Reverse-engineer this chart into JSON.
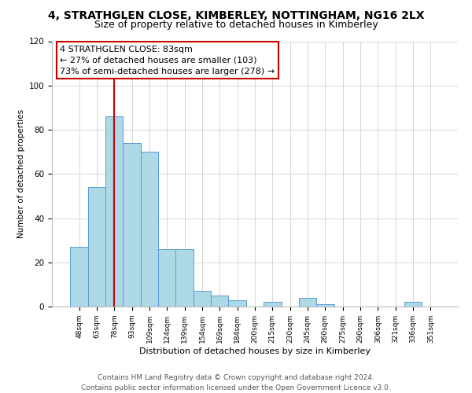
{
  "title": "4, STRATHGLEN CLOSE, KIMBERLEY, NOTTINGHAM, NG16 2LX",
  "subtitle": "Size of property relative to detached houses in Kimberley",
  "xlabel": "Distribution of detached houses by size in Kimberley",
  "ylabel": "Number of detached properties",
  "bar_labels": [
    "48sqm",
    "63sqm",
    "78sqm",
    "93sqm",
    "109sqm",
    "124sqm",
    "139sqm",
    "154sqm",
    "169sqm",
    "184sqm",
    "200sqm",
    "215sqm",
    "230sqm",
    "245sqm",
    "260sqm",
    "275sqm",
    "290sqm",
    "306sqm",
    "321sqm",
    "336sqm",
    "351sqm"
  ],
  "bar_values": [
    27,
    54,
    86,
    74,
    70,
    26,
    26,
    7,
    5,
    3,
    0,
    2,
    0,
    4,
    1,
    0,
    0,
    0,
    0,
    2,
    0
  ],
  "bar_color": "#add8e6",
  "bar_edge_color": "#5b9bd5",
  "vline_x": 2,
  "vline_color": "#cc0000",
  "ylim": [
    0,
    120
  ],
  "yticks": [
    0,
    20,
    40,
    60,
    80,
    100,
    120
  ],
  "annotation_title": "4 STRATHGLEN CLOSE: 83sqm",
  "annotation_line1": "← 27% of detached houses are smaller (103)",
  "annotation_line2": "73% of semi-detached houses are larger (278) →",
  "annotation_box_color": "#ffffff",
  "annotation_box_edge": "#cc0000",
  "footer_line1": "Contains HM Land Registry data © Crown copyright and database right 2024.",
  "footer_line2": "Contains public sector information licensed under the Open Government Licence v3.0.",
  "title_fontsize": 10,
  "subtitle_fontsize": 9,
  "annotation_fontsize": 8,
  "footer_fontsize": 6.5,
  "ylabel_fontsize": 7.5,
  "xlabel_fontsize": 8,
  "tick_fontsize": 6.5,
  "ytick_fontsize": 7.5
}
